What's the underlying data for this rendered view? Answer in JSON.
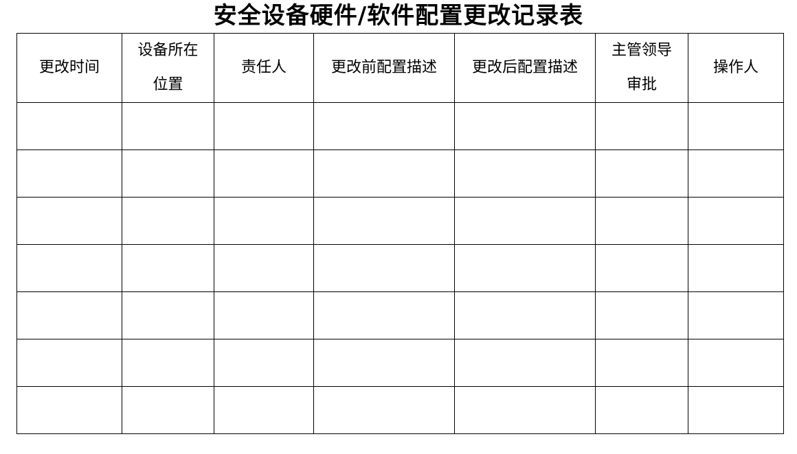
{
  "title": "安全设备硬件/软件配置更改记录表",
  "table": {
    "headers": [
      [
        "更改时间"
      ],
      [
        "设备所在",
        "位置"
      ],
      [
        "责任人"
      ],
      [
        "更改前配置描述"
      ],
      [
        "更改后配置描述"
      ],
      [
        "主管领导",
        "审批"
      ],
      [
        "操作人"
      ]
    ],
    "empty_rows": 7
  }
}
